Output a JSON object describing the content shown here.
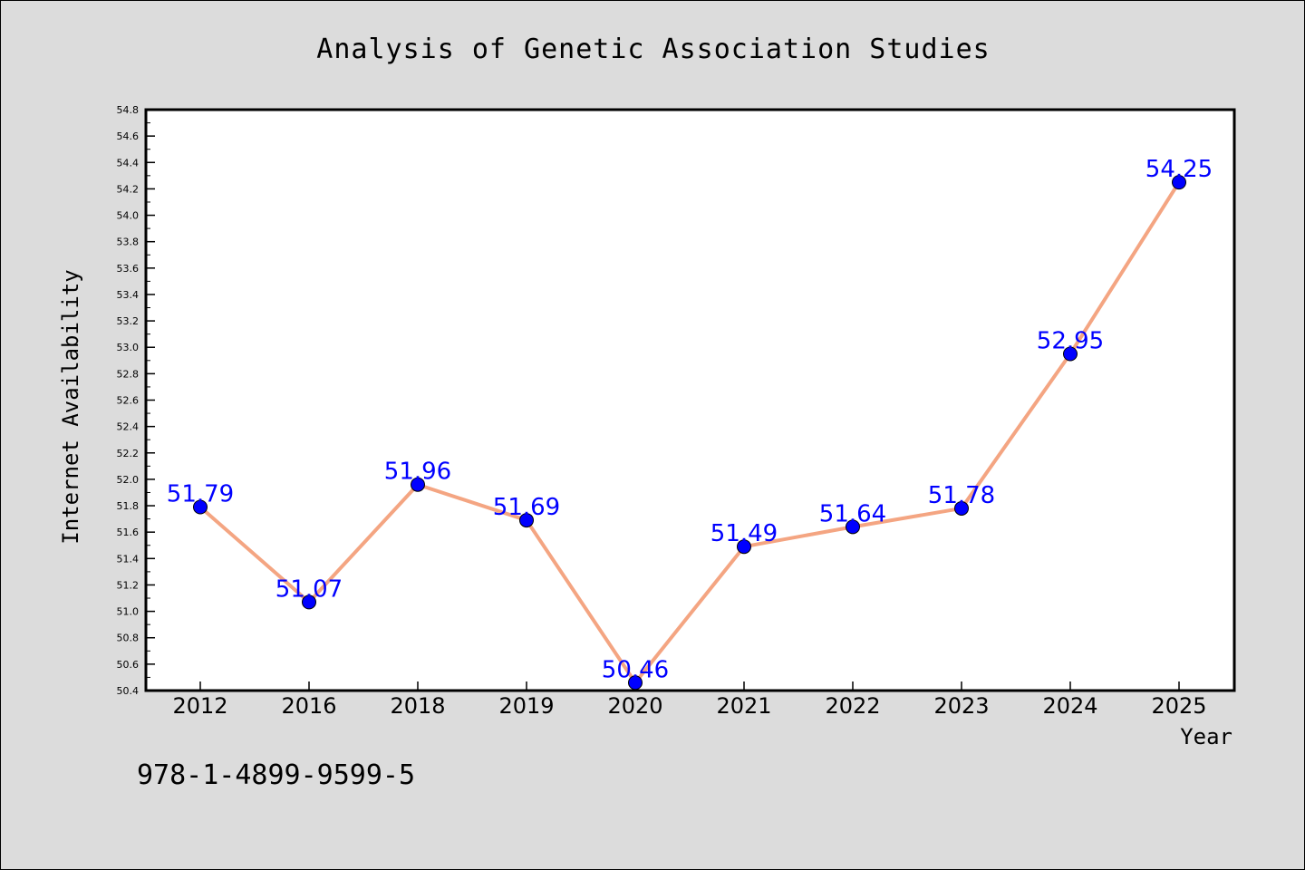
{
  "chart_data": {
    "type": "line",
    "title": "Analysis of Genetic Association Studies",
    "xlabel": "Year",
    "ylabel": "Internet Availability",
    "categories": [
      "2012",
      "2016",
      "2018",
      "2019",
      "2020",
      "2021",
      "2022",
      "2023",
      "2024",
      "2025"
    ],
    "values": [
      51.79,
      51.07,
      51.96,
      51.69,
      50.46,
      51.49,
      51.64,
      51.78,
      52.95,
      54.25
    ],
    "data_labels": [
      "51.79",
      "51.07",
      "51.96",
      "51.69",
      "50.46",
      "51.49",
      "51.64",
      "51.78",
      "52.95",
      "54.25"
    ],
    "ylim": [
      50.4,
      54.8
    ],
    "ytick_step": 0.2,
    "grid": false,
    "line_color": "#f4a582",
    "marker_color": "#0000ff",
    "label_color": "#0000ff",
    "annotation": "978-1-4899-9599-5"
  }
}
